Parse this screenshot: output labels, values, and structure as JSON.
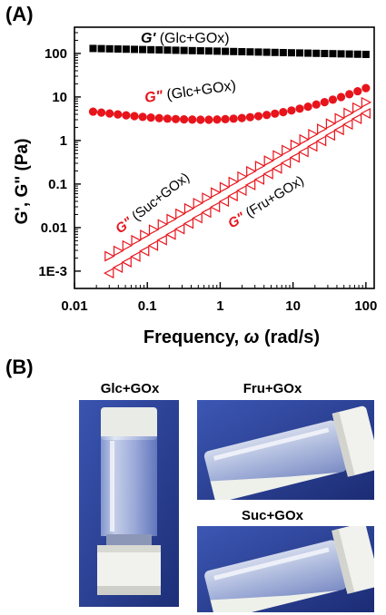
{
  "panel_a_label": "(A)",
  "panel_b_label": "(B)",
  "chart_data": {
    "type": "scatter",
    "title": "",
    "xlabel_main": "Frequency, ",
    "xlabel_symbol": "ω",
    "xlabel_unit": " (rad/s)",
    "ylabel": "G', G\" (Pa)",
    "x_scale": "log",
    "y_scale": "log",
    "xlim": [
      0.01,
      130
    ],
    "ylim": [
      0.0004,
      400
    ],
    "x_ticks": [
      {
        "value": 0.01,
        "label": "0.01"
      },
      {
        "value": 0.1,
        "label": "0.1"
      },
      {
        "value": 1,
        "label": "1"
      },
      {
        "value": 10,
        "label": "10"
      },
      {
        "value": 100,
        "label": "100"
      }
    ],
    "y_ticks": [
      {
        "value": 0.001,
        "label": "1E-3"
      },
      {
        "value": 0.01,
        "label": "0.01"
      },
      {
        "value": 0.1,
        "label": "0.1"
      },
      {
        "value": 1,
        "label": "1"
      },
      {
        "value": 10,
        "label": "10"
      },
      {
        "value": 100,
        "label": "100"
      }
    ],
    "grid": false,
    "series": [
      {
        "key": "gprime_glc",
        "marker": "square",
        "color": "#000000",
        "x_range": [
          0.018,
          100
        ],
        "y_start": 130,
        "y_end": 95,
        "count": 34
      },
      {
        "key": "gdouble_glc",
        "marker": "circle",
        "color": "#e8141c",
        "x_range": [
          0.018,
          100
        ],
        "y_min": 3.0,
        "y_start": 4.6,
        "y_end": 16,
        "x_min": 0.6,
        "count": 34
      },
      {
        "key": "gdouble_suc",
        "marker": "triangle-right",
        "color": "#e8141c",
        "x_range": [
          0.03,
          100
        ],
        "y_start": 0.0022,
        "y_end": 7.5,
        "count": 30
      },
      {
        "key": "gdouble_fru",
        "marker": "triangle-left",
        "color": "#e8141c",
        "x_range": [
          0.03,
          100
        ],
        "y_start": 0.0009,
        "y_end": 4.2,
        "count": 30
      }
    ],
    "annotations": [
      {
        "key": "ann_gprime",
        "symbol": "G'",
        "text": " (Glc+GOx)",
        "symbol_color": "#000000"
      },
      {
        "key": "ann_glc",
        "symbol": "G\"",
        "text": " (Glc+GOx)",
        "symbol_color": "#e8141c"
      },
      {
        "key": "ann_suc",
        "symbol": "G\"",
        "text": " (Suc+GOx)",
        "symbol_color": "#e8141c"
      },
      {
        "key": "ann_fru",
        "symbol": "G\"",
        "text": " (Fru+GOx)",
        "symbol_color": "#e8141c"
      }
    ]
  },
  "photos": {
    "glc_label": "Glc+GOx",
    "fru_label": "Fru+GOx",
    "suc_label": "Suc+GOx",
    "background_color": "#2a3f93"
  }
}
